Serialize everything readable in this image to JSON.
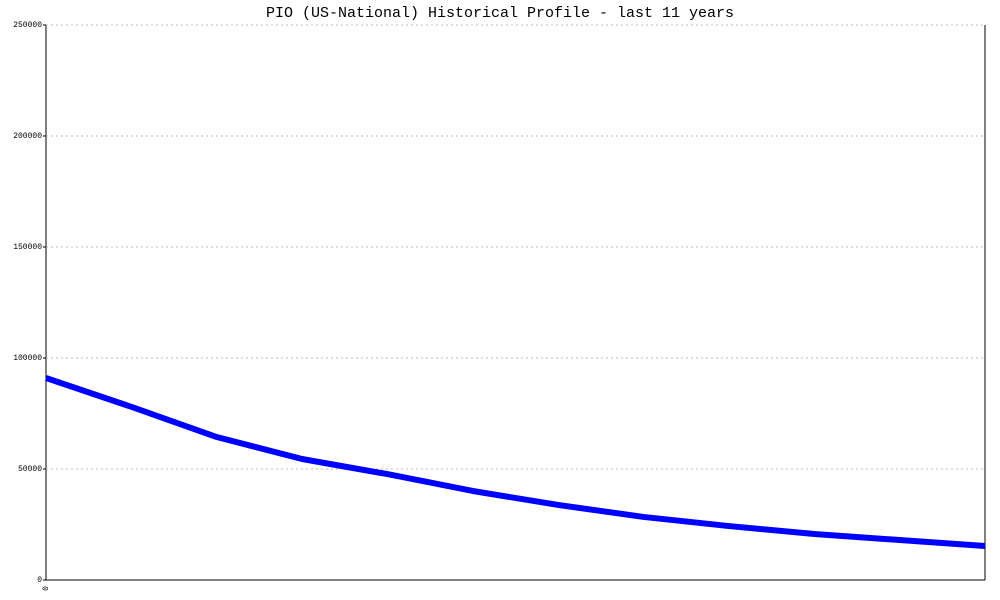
{
  "chart_data": {
    "type": "line",
    "title": "PIO (US-National) Historical Profile - last 11 years",
    "categories": [
      "0",
      null,
      null,
      null,
      null,
      null,
      null,
      null,
      null,
      null,
      null,
      null
    ],
    "series": [
      {
        "name": "PIO",
        "color": "#0000ff",
        "values": [
          91000,
          78000,
          64400,
          54500,
          47700,
          40100,
          33800,
          28400,
          24300,
          20700,
          18000,
          15300
        ]
      }
    ],
    "ylim": [
      0,
      250000
    ],
    "yticks": [
      0,
      50000,
      100000,
      150000,
      200000,
      250000
    ],
    "grid": true
  }
}
